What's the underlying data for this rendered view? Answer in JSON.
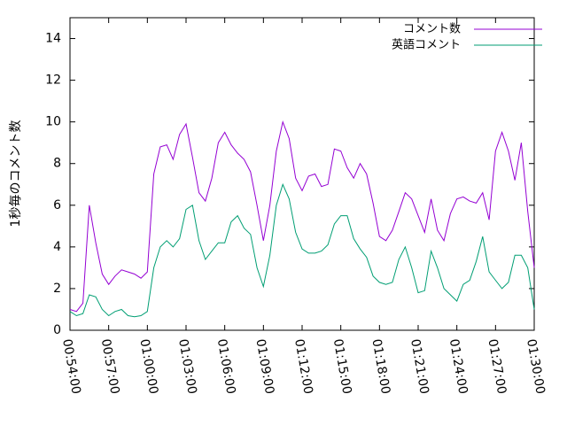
{
  "chart_data": {
    "type": "line",
    "y_label": "1秒毎のコメント数",
    "x": [
      "00:54:00",
      "00:54:30",
      "00:55:00",
      "00:55:30",
      "00:56:00",
      "00:56:30",
      "00:57:00",
      "00:57:30",
      "00:58:00",
      "00:58:30",
      "00:59:00",
      "00:59:30",
      "01:00:00",
      "01:00:30",
      "01:01:00",
      "01:01:30",
      "01:02:00",
      "01:02:30",
      "01:03:00",
      "01:03:30",
      "01:04:00",
      "01:04:30",
      "01:05:00",
      "01:05:30",
      "01:06:00",
      "01:06:30",
      "01:07:00",
      "01:07:30",
      "01:08:00",
      "01:08:30",
      "01:09:00",
      "01:09:30",
      "01:10:00",
      "01:10:30",
      "01:11:00",
      "01:11:30",
      "01:12:00",
      "01:12:30",
      "01:13:00",
      "01:13:30",
      "01:14:00",
      "01:14:30",
      "01:15:00",
      "01:15:30",
      "01:16:00",
      "01:16:30",
      "01:17:00",
      "01:17:30",
      "01:18:00",
      "01:18:30",
      "01:19:00",
      "01:19:30",
      "01:20:00",
      "01:20:30",
      "01:21:00",
      "01:21:30",
      "01:22:00",
      "01:22:30",
      "01:23:00",
      "01:23:30",
      "01:24:00",
      "01:24:30",
      "01:25:00",
      "01:25:30",
      "01:26:00",
      "01:26:30",
      "01:27:00",
      "01:27:30",
      "01:28:00",
      "01:28:30",
      "01:29:00",
      "01:29:30",
      "01:30:00"
    ],
    "series": [
      {
        "name": "コメント数",
        "color": "#9400d3",
        "values": [
          1.0,
          0.9,
          1.3,
          6.0,
          4.2,
          2.7,
          2.2,
          2.6,
          2.9,
          2.8,
          2.7,
          2.5,
          2.8,
          7.5,
          8.8,
          8.9,
          8.2,
          9.4,
          9.9,
          8.3,
          6.6,
          6.2,
          7.3,
          9.0,
          9.5,
          8.9,
          8.5,
          8.2,
          7.6,
          6.0,
          4.3,
          6.0,
          8.6,
          10.0,
          9.2,
          7.3,
          6.7,
          7.4,
          7.5,
          6.9,
          7.0,
          8.7,
          8.6,
          7.8,
          7.3,
          8.0,
          7.5,
          6.1,
          4.5,
          4.3,
          4.8,
          5.7,
          6.6,
          6.3,
          5.5,
          4.7,
          6.3,
          4.8,
          4.3,
          5.6,
          6.3,
          6.4,
          6.2,
          6.1,
          6.6,
          5.3,
          8.6,
          9.5,
          8.6,
          7.2,
          9.0,
          5.7,
          3.0
        ]
      },
      {
        "name": "英語コメント",
        "color": "#009e73",
        "values": [
          0.9,
          0.7,
          0.8,
          1.7,
          1.6,
          1.0,
          0.7,
          0.9,
          1.0,
          0.7,
          0.65,
          0.7,
          0.9,
          3.0,
          4.0,
          4.3,
          4.0,
          4.4,
          5.8,
          6.0,
          4.3,
          3.4,
          3.8,
          4.2,
          4.2,
          5.2,
          5.5,
          4.9,
          4.6,
          3.0,
          2.1,
          3.6,
          6.0,
          7.0,
          6.3,
          4.7,
          3.9,
          3.7,
          3.7,
          3.8,
          4.1,
          5.1,
          5.5,
          5.5,
          4.4,
          3.9,
          3.5,
          2.6,
          2.3,
          2.2,
          2.3,
          3.4,
          4.0,
          3.0,
          1.8,
          1.9,
          3.8,
          3.0,
          2.0,
          1.7,
          1.4,
          2.2,
          2.4,
          3.3,
          4.5,
          2.8,
          2.4,
          2.0,
          2.3,
          3.6,
          3.6,
          3.0,
          1.0
        ]
      }
    ],
    "xlim": [
      "00:54:00",
      "01:30:00"
    ],
    "xticks": [
      "00:54:00",
      "00:57:00",
      "01:00:00",
      "01:03:00",
      "01:06:00",
      "01:09:00",
      "01:12:00",
      "01:15:00",
      "01:18:00",
      "01:21:00",
      "01:24:00",
      "01:27:00",
      "01:30:00"
    ],
    "ylim": [
      0,
      15
    ],
    "yticks": [
      0,
      2,
      4,
      6,
      8,
      10,
      12,
      14
    ],
    "legend": "top-right"
  }
}
